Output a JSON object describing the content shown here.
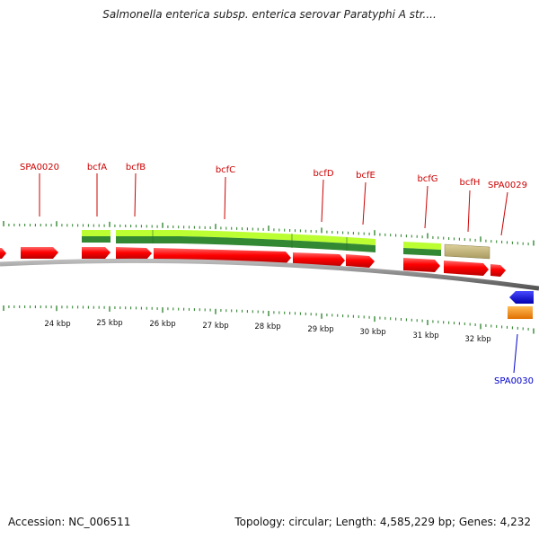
{
  "title": "Salmonella enterica subsp. enterica serovar Paratyphi A str....",
  "footer": {
    "accession": "Accession: NC_006511",
    "summary": "Topology: circular; Length: 4,585,229 bp; Genes: 4,232"
  },
  "scale_labels": [
    "24 kbp",
    "25 kbp",
    "26 kbp",
    "27 kbp",
    "28 kbp",
    "29 kbp",
    "30 kbp",
    "31 kbp",
    "32 kbp"
  ],
  "top_gene_labels": [
    "SPA0020",
    "bcfA",
    "bcfB",
    "bcfC",
    "bcfD",
    "bcfE",
    "bcfG",
    "bcfH",
    "SPA0029"
  ],
  "bottom_gene_labels": [
    "SPA0030"
  ],
  "colors": {
    "forward_gene": "#ff0000",
    "reverse_gene": "#0000ff",
    "rna_feature": "#ff8800",
    "cds_light": "#bbff33",
    "cds_dark": "#338833",
    "pseudo_feature": "#c8b87a",
    "backbone": "#888888",
    "ticks": "#338833"
  }
}
